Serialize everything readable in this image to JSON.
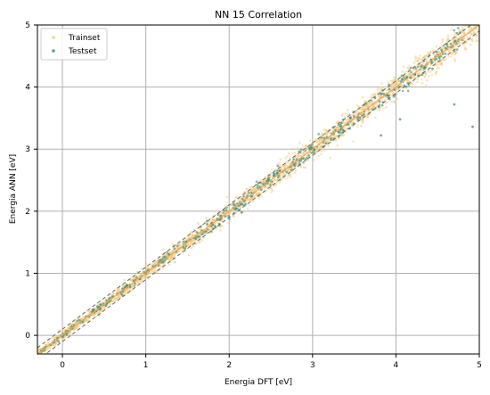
{
  "chart_data": {
    "type": "scatter",
    "title": "NN 15 Correlation",
    "xlabel": "Energia DFT [eV]",
    "ylabel": "Energia ANN [eV]",
    "xlim": [
      -0.3,
      5
    ],
    "ylim": [
      -0.3,
      5
    ],
    "xticks": [
      "0",
      "1",
      "2",
      "3",
      "4",
      "5"
    ],
    "yticks": [
      "0",
      "1",
      "2",
      "3",
      "4",
      "5"
    ],
    "grid": true,
    "legend_position": "top-left",
    "reference_lines": {
      "identity_color": "#f4a460",
      "band_offset": 0.1,
      "band_color": "#666666"
    },
    "series": [
      {
        "name": "Trainset",
        "color": "#f0c674",
        "spread": 0.07,
        "count": 2400,
        "x_range": [
          -0.3,
          5
        ]
      },
      {
        "name": "Testset",
        "color": "#2e8b7a",
        "spread": 0.05,
        "count": 450,
        "x_range": [
          -0.3,
          4.8
        ],
        "outliers": [
          [
            3.82,
            3.22
          ],
          [
            4.05,
            3.48
          ],
          [
            4.92,
            3.36
          ],
          [
            4.7,
            3.72
          ],
          [
            2.15,
            1.98
          ]
        ]
      }
    ]
  }
}
